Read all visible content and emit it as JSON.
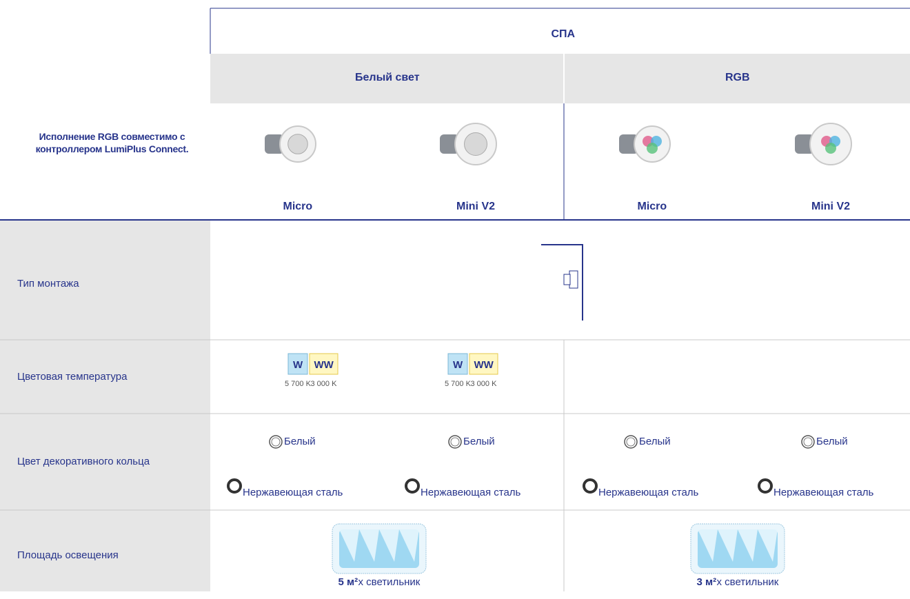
{
  "header": {
    "group": "СПА",
    "subgroups": [
      "Белый свет",
      "RGB"
    ],
    "note": "Исполнение RGB совместимо с контроллером LumiPlus Connect.",
    "products": [
      "Micro",
      "Mini V2",
      "Micro",
      "Mini V2"
    ]
  },
  "rows": [
    {
      "label": "Тип монтажа"
    },
    {
      "label": "Цветовая температура",
      "cells": [
        [
          {
            "code": "W",
            "temp": "5 700 K"
          },
          {
            "code": "WW",
            "temp": "3 000 K"
          }
        ],
        [
          {
            "code": "W",
            "temp": "5 700 K"
          },
          {
            "code": "WW",
            "temp": "3 000 K"
          }
        ]
      ]
    },
    {
      "label": "Цвет декоративного кольца",
      "cells": [
        [
          "Белый",
          "Нержавеющая сталь"
        ],
        [
          "Белый",
          "Нержавеющая сталь"
        ],
        [
          "Белый",
          "Нержавеющая сталь"
        ],
        [
          "Белый",
          "Нержавеющая сталь"
        ]
      ]
    },
    {
      "label": "Площадь освещения",
      "cells": [
        {
          "value": "5 м²",
          "suffix": "х светильник"
        },
        {
          "value": "3 м²",
          "suffix": "х светильник"
        }
      ]
    }
  ]
}
